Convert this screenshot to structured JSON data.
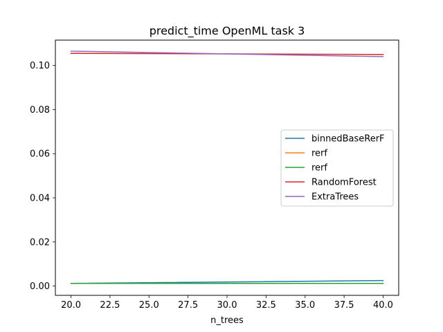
{
  "chart_data": {
    "type": "line",
    "title": "predict_time OpenML task 3",
    "xlabel": "n_trees",
    "ylabel": "",
    "x": [
      20,
      40
    ],
    "xlim": [
      19.0,
      41.0
    ],
    "ylim": [
      -0.0042,
      0.1115
    ],
    "xticks": [
      20.0,
      22.5,
      25.0,
      27.5,
      30.0,
      32.5,
      35.0,
      37.5,
      40.0
    ],
    "xtick_labels": [
      "20.0",
      "22.5",
      "25.0",
      "27.5",
      "30.0",
      "32.5",
      "35.0",
      "37.5",
      "40.0"
    ],
    "yticks": [
      0.0,
      0.02,
      0.04,
      0.06,
      0.08,
      0.1
    ],
    "ytick_labels": [
      "0.00",
      "0.02",
      "0.04",
      "0.06",
      "0.08",
      "0.10"
    ],
    "grid": false,
    "legend_position": "center-right",
    "series": [
      {
        "name": "binnedBaseRerF",
        "color": "#1f77b4",
        "values": [
          0.0012,
          0.0025
        ]
      },
      {
        "name": "rerf",
        "color": "#ff7f0e",
        "values": [
          0.0012,
          0.0012
        ]
      },
      {
        "name": "rerf",
        "color": "#2ca02c",
        "values": [
          0.0012,
          0.0012
        ]
      },
      {
        "name": "RandomForest",
        "color": "#d62728",
        "values": [
          0.1055,
          0.105
        ]
      },
      {
        "name": "ExtraTrees",
        "color": "#9467bd",
        "values": [
          0.1065,
          0.104
        ]
      }
    ]
  }
}
